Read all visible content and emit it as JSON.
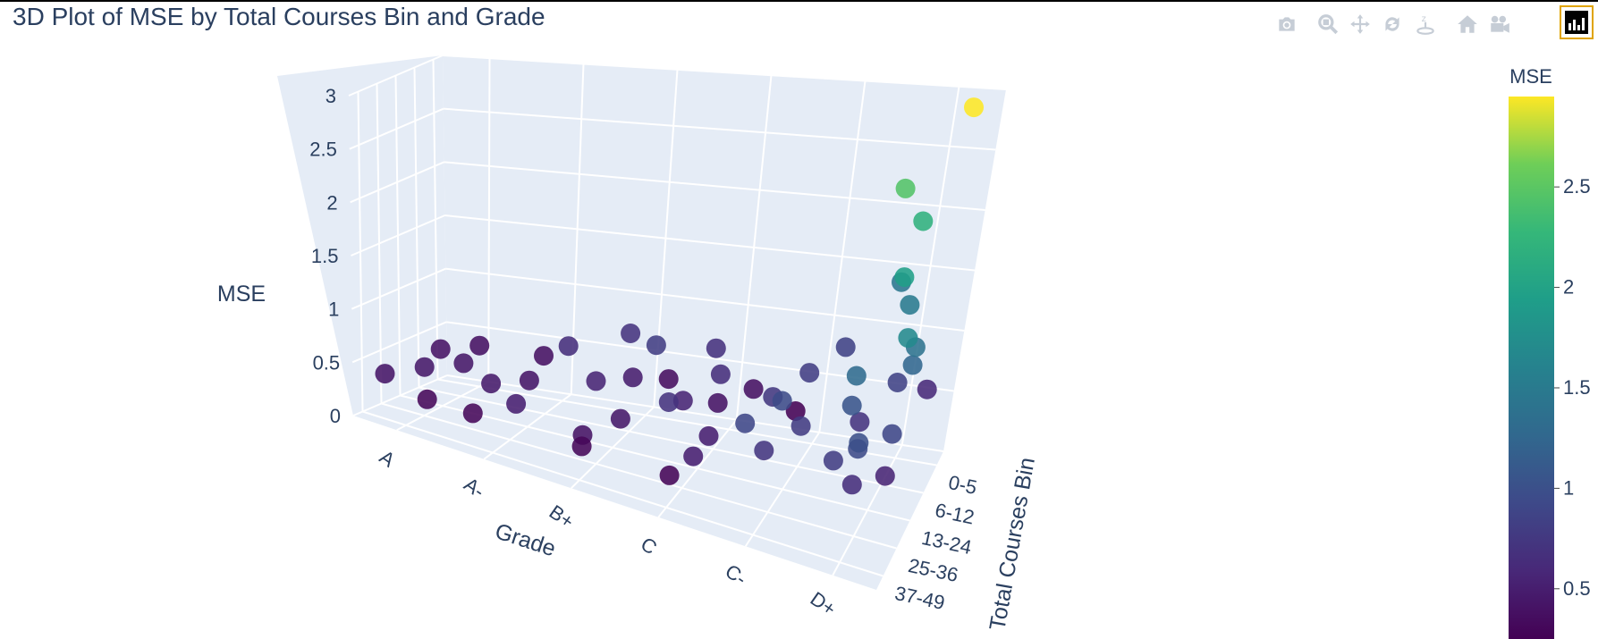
{
  "title": "3D Plot of MSE by Total Courses Bin and Grade",
  "modebar": {
    "icons": [
      "camera-icon",
      "zoom-icon",
      "pan-icon",
      "orbit-rotation-icon",
      "turntable-rotation-icon",
      "home-icon",
      "camera-view-icon",
      "plotly-logo-icon"
    ]
  },
  "chart_data": {
    "type": "scatter3d",
    "title": "3D Plot of MSE by Total Courses Bin and Grade",
    "x_axis": {
      "title": "Grade",
      "ticks": [
        "A",
        "A-",
        "B+",
        "C",
        "C-",
        "D+"
      ]
    },
    "y_axis": {
      "title": "Total Courses Bin",
      "ticks": [
        "0-5",
        "6-12",
        "13-24",
        "25-36",
        "37-49"
      ]
    },
    "z_axis": {
      "title": "MSE",
      "ticks": [
        "0",
        "0.5",
        "1",
        "1.5",
        "2",
        "2.5",
        "3"
      ],
      "range": [
        0,
        3
      ]
    },
    "colorbar": {
      "title": "MSE",
      "ticks": [
        "0.5",
        "1",
        "1.5",
        "2",
        "2.5"
      ],
      "range": [
        0.25,
        2.95
      ],
      "colorscale": "Viridis"
    },
    "points": [
      {
        "grade": "A",
        "bin": "37-49",
        "mse": 0.42
      },
      {
        "grade": "A",
        "bin": "25-36",
        "mse": 0.45
      },
      {
        "grade": "A",
        "bin": "13-24",
        "mse": 0.44
      },
      {
        "grade": "A",
        "bin": "6-12",
        "mse": 0.4
      },
      {
        "grade": "A",
        "bin": "0-5",
        "mse": 0.38
      },
      {
        "grade": "A-",
        "bin": "37-49",
        "mse": 0.5
      },
      {
        "grade": "A-",
        "bin": "25-36",
        "mse": 0.46
      },
      {
        "grade": "A-",
        "bin": "13-24",
        "mse": 0.42
      },
      {
        "grade": "A-",
        "bin": "6-12",
        "mse": 0.65
      },
      {
        "grade": "A-",
        "bin": "0-5",
        "mse": 0.38
      },
      {
        "grade": "B+",
        "bin": "37-49",
        "mse": 0.4
      },
      {
        "grade": "B+",
        "bin": "25-36",
        "mse": 0.45
      },
      {
        "grade": "B+",
        "bin": "13-24",
        "mse": 0.55
      },
      {
        "grade": "B+",
        "bin": "6-12",
        "mse": 0.48
      },
      {
        "grade": "B+",
        "bin": "0-5",
        "mse": 0.35
      },
      {
        "grade": "B+",
        "bin": "0-5",
        "mse": 0.7
      },
      {
        "grade": "C",
        "bin": "37-49",
        "mse": 0.28
      },
      {
        "grade": "C",
        "bin": "25-36",
        "mse": 0.5
      },
      {
        "grade": "C",
        "bin": "13-24",
        "mse": 0.55
      },
      {
        "grade": "C",
        "bin": "6-12",
        "mse": 0.4
      },
      {
        "grade": "C",
        "bin": "0-5",
        "mse": 0.38
      },
      {
        "grade": "C",
        "bin": "0-5",
        "mse": 0.68
      },
      {
        "grade": "C-",
        "bin": "37-49",
        "mse": 0.72
      },
      {
        "grade": "C-",
        "bin": "25-36",
        "mse": 0.78
      },
      {
        "grade": "C-",
        "bin": "13-24",
        "mse": 0.75
      },
      {
        "grade": "C-",
        "bin": "6-12",
        "mse": 0.8
      },
      {
        "grade": "C-",
        "bin": "0-5",
        "mse": 0.85
      },
      {
        "grade": "C-",
        "bin": "0-5",
        "mse": 0.25
      },
      {
        "grade": "D+",
        "bin": "37-49",
        "mse": 0.65
      },
      {
        "grade": "D+",
        "bin": "25-36",
        "mse": 0.55
      },
      {
        "grade": "D+",
        "bin": "13-24",
        "mse": 0.7
      },
      {
        "grade": "D+",
        "bin": "6-12",
        "mse": 0.85
      },
      {
        "grade": "D+",
        "bin": "0-5",
        "mse": 0.6
      },
      {
        "grade": "D+",
        "bin": "0-5",
        "mse": 1.45
      },
      {
        "grade": "D+",
        "bin": "6-12",
        "mse": 1.5
      },
      {
        "grade": "D+",
        "bin": "13-24",
        "mse": 1.25
      },
      {
        "grade": "D+",
        "bin": "25-36",
        "mse": 1.05
      },
      {
        "grade": "D+",
        "bin": "37-49",
        "mse": 0.95
      },
      {
        "grade": "D+",
        "bin": "13-24",
        "mse": 1.4
      },
      {
        "grade": "D+",
        "bin": "25-36",
        "mse": 1.3
      },
      {
        "grade": "D+",
        "bin": "6-12",
        "mse": 2.2
      },
      {
        "grade": "D+",
        "bin": "0-5",
        "mse": 2.95
      },
      {
        "grade": "D+",
        "bin": "6-12",
        "mse": 2.45
      },
      {
        "grade": "D+",
        "bin": "13-24",
        "mse": 1.95
      },
      {
        "grade": "D+",
        "bin": "25-36",
        "mse": 1.7
      },
      {
        "grade": "D+",
        "bin": "37-49",
        "mse": 0.8
      },
      {
        "grade": "D+",
        "bin": "37-49",
        "mse": 1.0
      },
      {
        "grade": "D+",
        "bin": "25-36",
        "mse": 0.9
      },
      {
        "grade": "C-",
        "bin": "37-49",
        "mse": 0.9
      },
      {
        "grade": "C-",
        "bin": "25-36",
        "mse": 0.95
      },
      {
        "grade": "A",
        "bin": "37-49",
        "mse": 0.3
      },
      {
        "grade": "A-",
        "bin": "37-49",
        "mse": 0.3
      },
      {
        "grade": "B+",
        "bin": "37-49",
        "mse": 0.3
      },
      {
        "grade": "C",
        "bin": "37-49",
        "mse": 0.5
      },
      {
        "grade": "C",
        "bin": "25-36",
        "mse": 0.7
      },
      {
        "grade": "C",
        "bin": "6-12",
        "mse": 0.65
      },
      {
        "grade": "B+",
        "bin": "6-12",
        "mse": 0.8
      }
    ]
  }
}
